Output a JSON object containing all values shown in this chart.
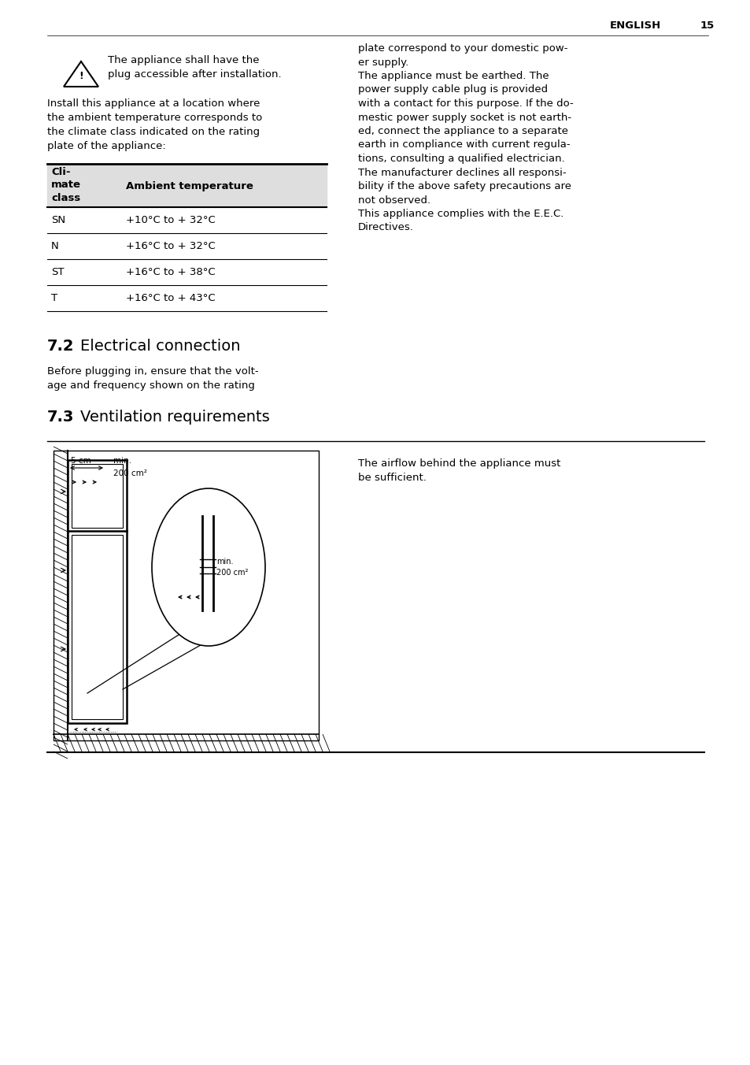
{
  "page_number": "15",
  "language_label": "ENGLISH",
  "warning_text": "The appliance shall have the\nplug accessible after installation.",
  "intro_text": "Install this appliance at a location where\nthe ambient temperature corresponds to\nthe climate class indicated on the rating\nplate of the appliance:",
  "table_header_col1": "Cli-\nmate\nclass",
  "table_header_col2": "Ambient temperature",
  "table_rows": [
    [
      "SN",
      "+10°C to + 32°C"
    ],
    [
      "N",
      "+16°C to + 32°C"
    ],
    [
      "ST",
      "+16°C to + 38°C"
    ],
    [
      "T",
      "+16°C to + 43°C"
    ]
  ],
  "right_col_text": "plate correspond to your domestic pow-\ner supply.\nThe appliance must be earthed. The\npower supply cable plug is provided\nwith a contact for this purpose. If the do-\nmestic power supply socket is not earth-\ned, connect the appliance to a separate\nearth in compliance with current regula-\ntions, consulting a qualified electrician.\nThe manufacturer declines all responsi-\nbility if the above safety precautions are\nnot observed.\nThis appliance complies with the E.E.C.\nDirectives.",
  "section_72_text": "Before plugging in, ensure that the volt-\nage and frequency shown on the rating",
  "ventilation_text": "The airflow behind the appliance must\nbe sufficient.",
  "bg_color": "#ffffff",
  "text_color": "#000000"
}
